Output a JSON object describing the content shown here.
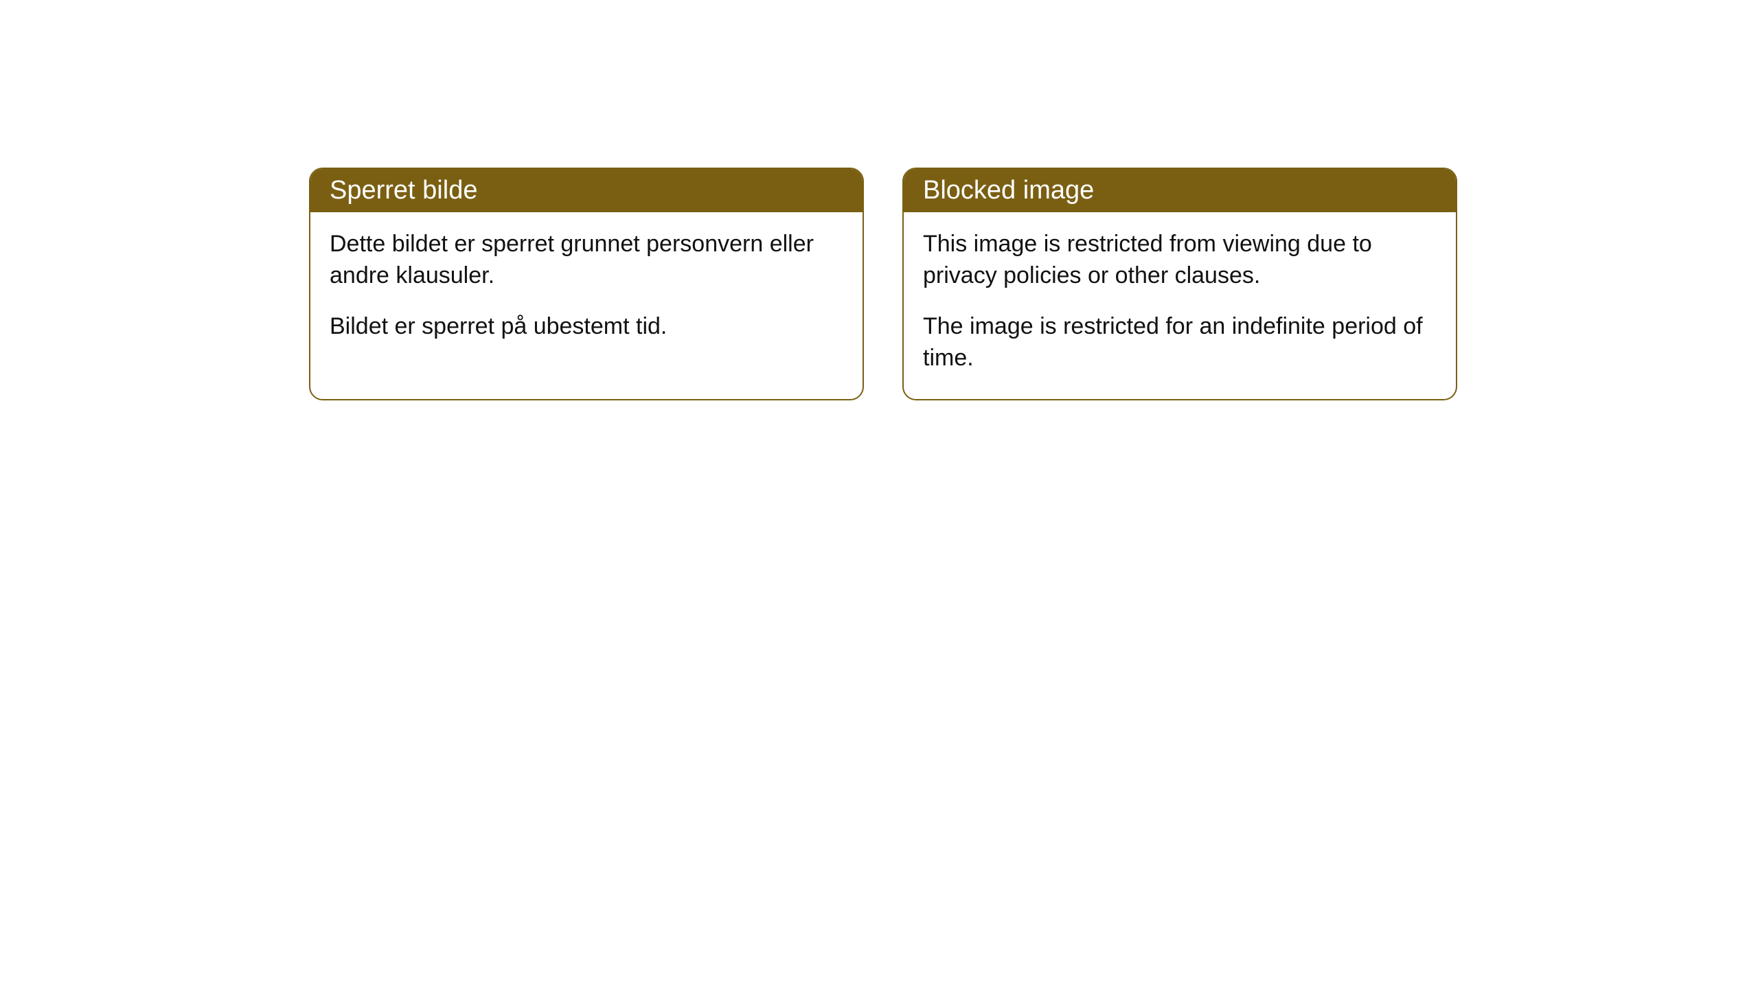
{
  "cards": [
    {
      "header": "Sperret bilde",
      "paragraph1": "Dette bildet er sperret grunnet personvern eller andre klausuler.",
      "paragraph2": "Bildet er sperret på ubestemt tid."
    },
    {
      "header": "Blocked image",
      "paragraph1": "This image is restricted from viewing due to privacy policies or other clauses.",
      "paragraph2": "The image is restricted for an indefinite period of time."
    }
  ],
  "styling": {
    "header_bg": "#7a5f13",
    "header_color": "#ffffff",
    "border_color": "#7a5f13",
    "body_bg": "#ffffff",
    "text_color": "#111111",
    "border_radius": 20,
    "header_fontsize": 38,
    "body_fontsize": 34
  }
}
